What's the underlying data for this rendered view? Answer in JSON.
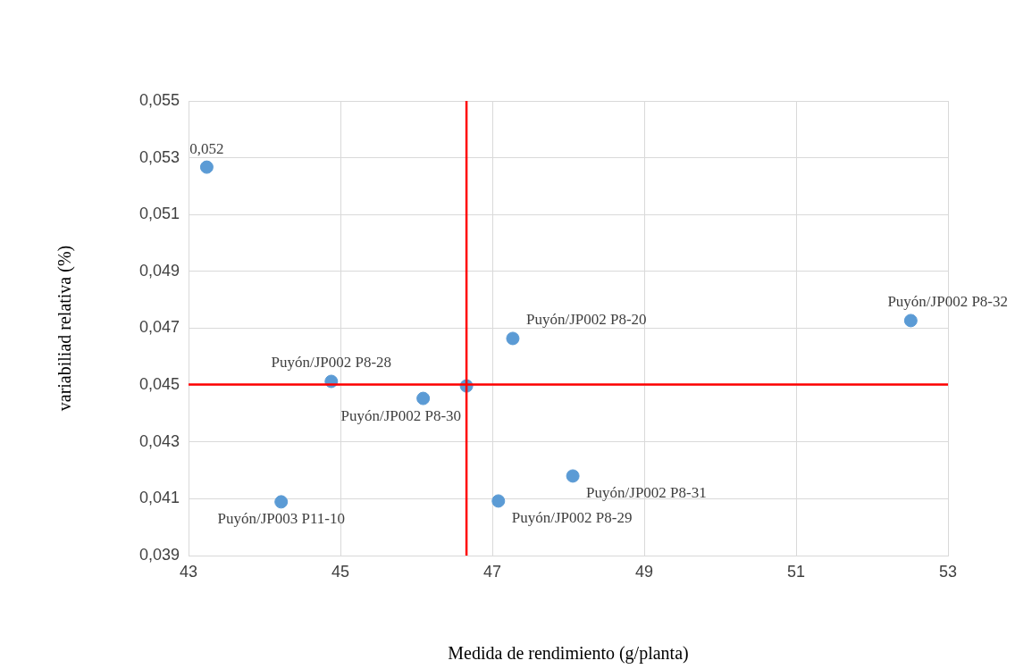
{
  "chart_data": {
    "type": "scatter",
    "xlabel": "Medida de rendimiento (g/planta)",
    "ylabel": "variabiliad relativa (%)",
    "x": [
      43.24,
      44.88,
      46.09,
      46.66,
      47.27,
      52.51,
      48.06,
      47.08,
      44.22
    ],
    "values": [
      0.05267,
      0.04513,
      0.04453,
      0.04497,
      0.04664,
      0.04727,
      0.0418,
      0.04092,
      0.04089
    ],
    "color": "#5b9bd5",
    "marker": "circle",
    "xlim": [
      43,
      53
    ],
    "xticks": [
      43,
      45,
      47,
      49,
      51,
      53
    ],
    "ylim": [
      0.039,
      0.055
    ],
    "yticks": [
      {
        "value": 0.039,
        "label": "0,039"
      },
      {
        "value": 0.041,
        "label": "0,041"
      },
      {
        "value": 0.043,
        "label": "0,043"
      },
      {
        "value": 0.045,
        "label": "0,045"
      },
      {
        "value": 0.047,
        "label": "0,047"
      },
      {
        "value": 0.049,
        "label": "0,049"
      },
      {
        "value": 0.051,
        "label": "0,051"
      },
      {
        "value": 0.053,
        "label": "0,053"
      },
      {
        "value": 0.055,
        "label": "0,055"
      }
    ],
    "grid": true,
    "legend": false,
    "ref_lines": [
      {
        "axis": "x",
        "value": 46.66,
        "color": "#ff0000"
      },
      {
        "axis": "y",
        "value": 0.04502,
        "color": "#ff0000"
      }
    ],
    "annotations": [
      {
        "text": "0,052",
        "x": 43.24,
        "y": 0.05267
      },
      {
        "text": "Puyón/JP002 P8-28",
        "x": 44.88,
        "y": 0.04513
      },
      {
        "text": "Puyón/JP002 P8-30",
        "x": 46.09,
        "y": 0.04453
      },
      {
        "text": "Puyón/JP002 P8-20",
        "x": 47.27,
        "y": 0.04664
      },
      {
        "text": "Puyón/JP002 P8-32",
        "x": 52.51,
        "y": 0.04727
      },
      {
        "text": "Puyón/JP002 P8-31",
        "x": 48.06,
        "y": 0.0418
      },
      {
        "text": "Puyón/JP002 P8-29",
        "x": 47.08,
        "y": 0.04092
      },
      {
        "text": "Puyón/JP003 P11-10",
        "x": 44.22,
        "y": 0.04089
      }
    ]
  }
}
